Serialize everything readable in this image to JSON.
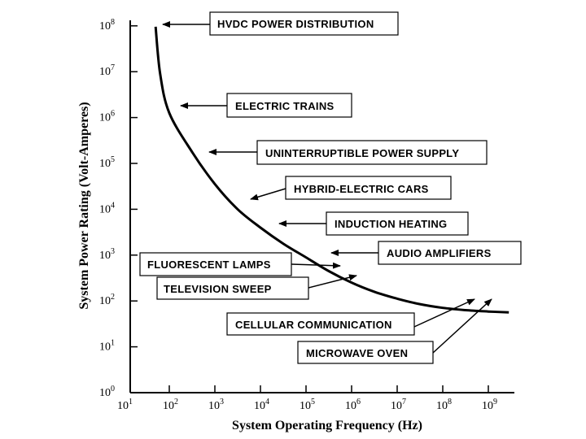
{
  "chart_data": {
    "type": "line",
    "title": "",
    "xlabel": "System Operating Frequency  (Hz)",
    "ylabel": "System Power Rating  (Volt-Amperes)",
    "xscale": "log",
    "yscale": "log",
    "xlim_exp": [
      1,
      9.5
    ],
    "ylim_exp": [
      0,
      8
    ],
    "x_ticks": [
      {
        "base": "10",
        "exp": "1"
      },
      {
        "base": "10",
        "exp": "2"
      },
      {
        "base": "10",
        "exp": "3"
      },
      {
        "base": "10",
        "exp": "4"
      },
      {
        "base": "10",
        "exp": "5"
      },
      {
        "base": "10",
        "exp": "6"
      },
      {
        "base": "10",
        "exp": "7"
      },
      {
        "base": "10",
        "exp": "8"
      },
      {
        "base": "10",
        "exp": "9"
      }
    ],
    "y_ticks": [
      {
        "base": "10",
        "exp": "0"
      },
      {
        "base": "10",
        "exp": "1"
      },
      {
        "base": "10",
        "exp": "2"
      },
      {
        "base": "10",
        "exp": "3"
      },
      {
        "base": "10",
        "exp": "4"
      },
      {
        "base": "10",
        "exp": "5"
      },
      {
        "base": "10",
        "exp": "6"
      },
      {
        "base": "10",
        "exp": "7"
      },
      {
        "base": "10",
        "exp": "8"
      }
    ],
    "curve_log10": [
      [
        1.7,
        7.98
      ],
      [
        1.8,
        6.95
      ],
      [
        2.0,
        6.1
      ],
      [
        2.5,
        5.25
      ],
      [
        3.0,
        4.55
      ],
      [
        3.5,
        4.0
      ],
      [
        4.0,
        3.6
      ],
      [
        4.5,
        3.25
      ],
      [
        5.0,
        2.95
      ],
      [
        5.5,
        2.65
      ],
      [
        6.0,
        2.4
      ],
      [
        6.5,
        2.2
      ],
      [
        7.0,
        2.05
      ],
      [
        7.5,
        1.93
      ],
      [
        8.0,
        1.85
      ],
      [
        8.5,
        1.8
      ],
      [
        9.0,
        1.77
      ],
      [
        9.45,
        1.75
      ]
    ],
    "applications": [
      "HVDC POWER DISTRIBUTION",
      "ELECTRIC TRAINS",
      "UNINTERRUPTIBLE POWER SUPPLY",
      "HYBRID-ELECTRIC CARS",
      "INDUCTION HEATING",
      "AUDIO AMPLIFIERS",
      "FLUORESCENT LAMPS",
      "TELEVISION SWEEP",
      "CELLULAR COMMUNICATION",
      "MICROWAVE OVEN"
    ]
  }
}
